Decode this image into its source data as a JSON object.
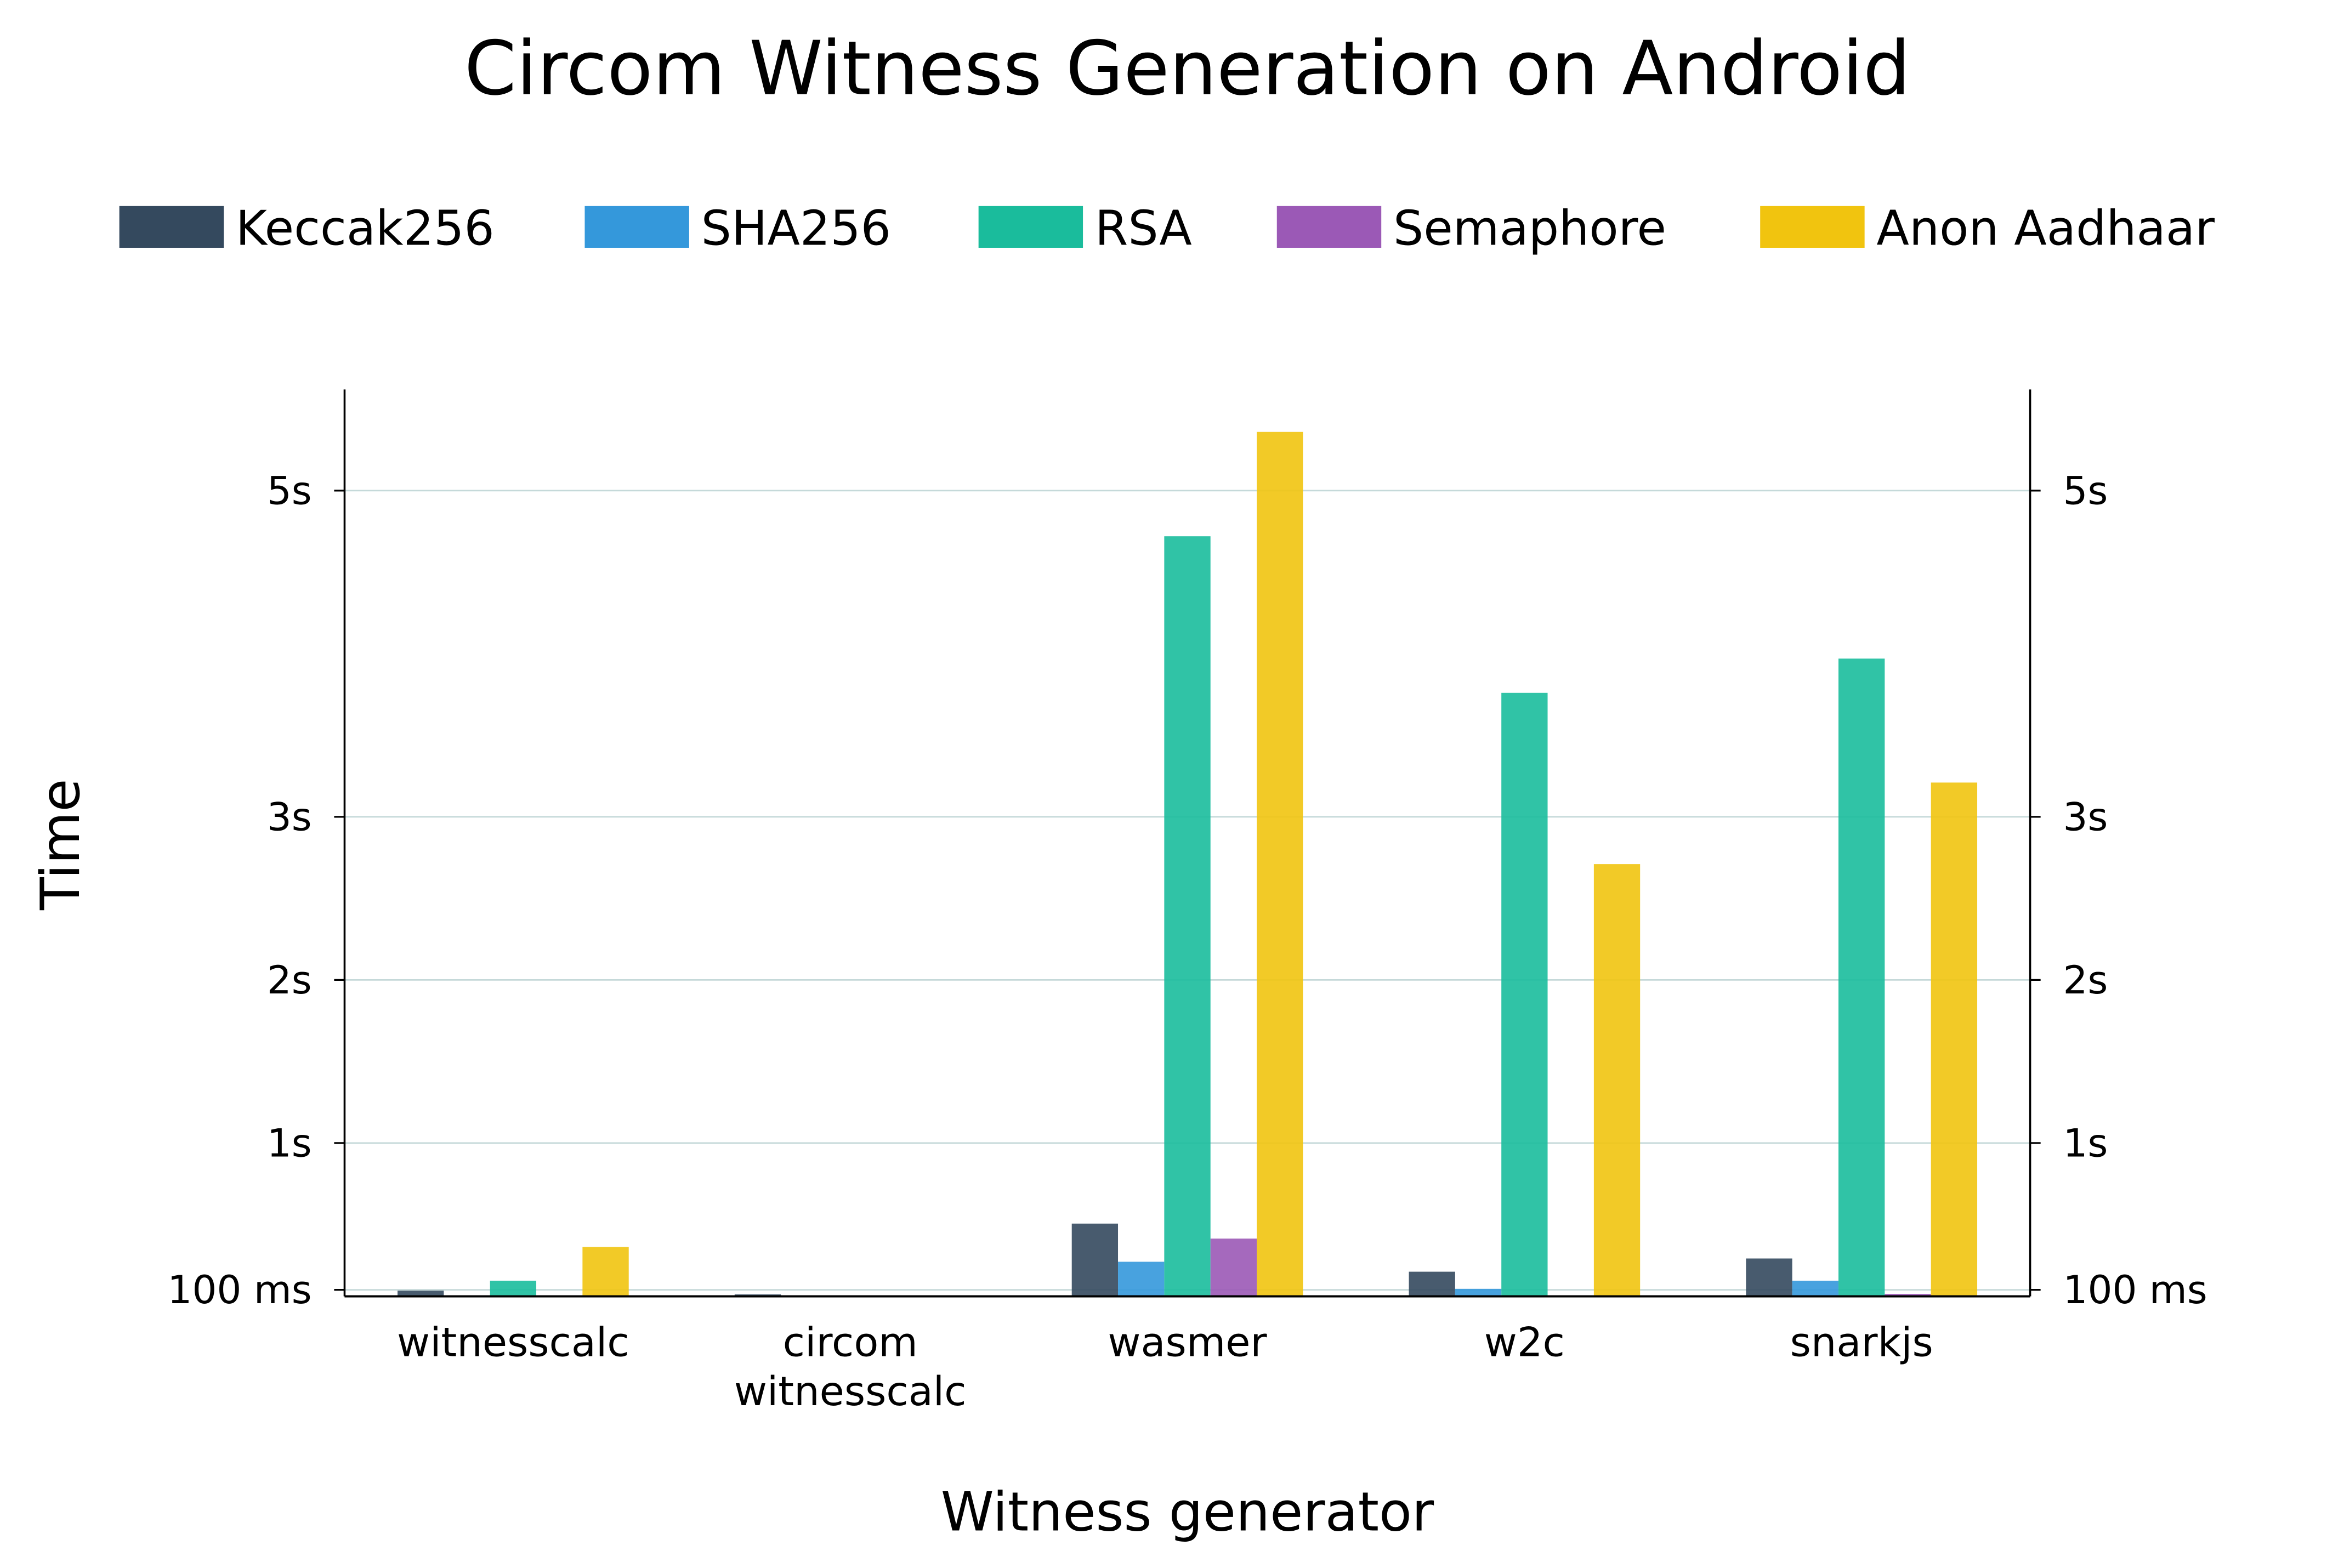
{
  "chart_data": {
    "type": "bar",
    "title": "Circom Witness Generation on Android",
    "xlabel": "Witness generator",
    "ylabel": "Time",
    "categories": [
      "witnesscalc",
      "circom\nwitnesscalc",
      "wasmer",
      "w2c",
      "snarkjs"
    ],
    "yticks": [
      {
        "value": 0.1,
        "label": "100 ms"
      },
      {
        "value": 1,
        "label": "1s"
      },
      {
        "value": 2,
        "label": "2s"
      },
      {
        "value": 3,
        "label": "3s"
      },
      {
        "value": 5,
        "label": "5s"
      }
    ],
    "ylim": [
      0.06,
      5.62
    ],
    "yunit": "s",
    "grid": true,
    "legend_position": "top",
    "series": [
      {
        "name": "Keccak256",
        "color": "#34495e",
        "values": [
          0.095,
          0.072,
          0.506,
          0.211,
          0.292
        ]
      },
      {
        "name": "SHA256",
        "color": "#3498db",
        "values": [
          0.031,
          0.045,
          0.272,
          0.106,
          0.156
        ]
      },
      {
        "name": "RSA",
        "color": "#1abc9c",
        "values": [
          0.156,
          null,
          4.72,
          3.76,
          3.97
        ]
      },
      {
        "name": "Semaphore",
        "color": "#9b59b6",
        "values": [
          null,
          null,
          0.414,
          0.034,
          0.075
        ]
      },
      {
        "name": "Anon Aadhaar",
        "color": "#f1c40f",
        "values": [
          0.363,
          null,
          5.36,
          2.71,
          3.21
        ]
      }
    ]
  }
}
